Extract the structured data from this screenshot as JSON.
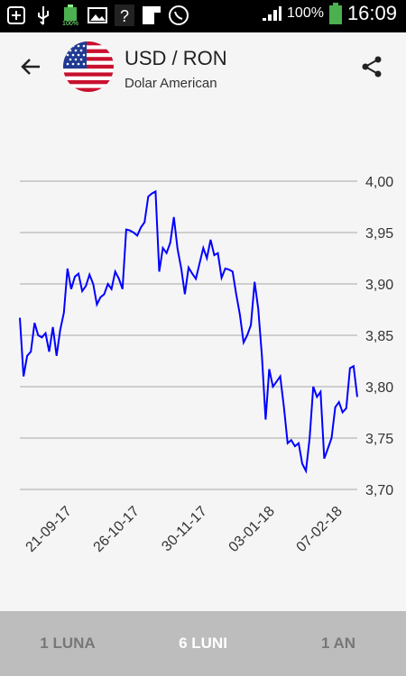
{
  "status_bar": {
    "battery_small_label": "100%",
    "battery_percent": "100%",
    "time": "16:09",
    "icons": [
      "plus-icon",
      "usb-icon",
      "battery-full-icon",
      "image-icon",
      "question-icon",
      "flipboard-icon",
      "viber-icon"
    ]
  },
  "header": {
    "title": "USD / RON",
    "subtitle": "Dolar American",
    "back_icon": "arrow-left-icon",
    "share_icon": "share-icon"
  },
  "chart_data": {
    "type": "line",
    "color": "#0000ff",
    "ylim": [
      3.7,
      4.0
    ],
    "yticks": [
      "4,00",
      "3,95",
      "3,90",
      "3,85",
      "3,80",
      "3,75",
      "3,70"
    ],
    "xtick_labels": [
      "21-09-17",
      "26-10-17",
      "30-11-17",
      "03-01-18",
      "07-02-18"
    ],
    "grid": true,
    "series": [
      {
        "values": [
          3.867,
          3.81,
          3.83,
          3.834,
          3.862,
          3.85,
          3.848,
          3.852,
          3.834,
          3.858,
          3.83,
          3.855,
          3.872,
          3.915,
          3.895,
          3.907,
          3.91,
          3.893,
          3.898,
          3.909,
          3.9,
          3.88,
          3.887,
          3.89,
          3.9,
          3.895,
          3.912,
          3.905,
          3.895,
          3.953,
          3.952,
          3.95,
          3.947,
          3.955,
          3.96,
          3.985,
          3.988,
          3.99,
          3.912,
          3.935,
          3.93,
          3.94,
          3.965,
          3.934,
          3.915,
          3.89,
          3.916,
          3.91,
          3.905,
          3.92,
          3.935,
          3.925,
          3.943,
          3.928,
          3.93,
          3.906,
          3.915,
          3.914,
          3.912,
          3.89,
          3.87,
          3.843,
          3.85,
          3.86,
          3.902,
          3.876,
          3.83,
          3.768,
          3.817,
          3.8,
          3.805,
          3.81,
          3.78,
          3.745,
          3.748,
          3.742,
          3.745,
          3.725,
          3.718,
          3.75,
          3.8,
          3.79,
          3.795,
          3.73,
          3.74,
          3.75,
          3.78,
          3.785,
          3.775,
          3.779,
          3.818,
          3.82,
          3.79
        ]
      }
    ]
  },
  "tabs": [
    {
      "label": "1 LUNA",
      "active": false
    },
    {
      "label": "6 LUNI",
      "active": true
    },
    {
      "label": "1 AN",
      "active": false
    }
  ]
}
